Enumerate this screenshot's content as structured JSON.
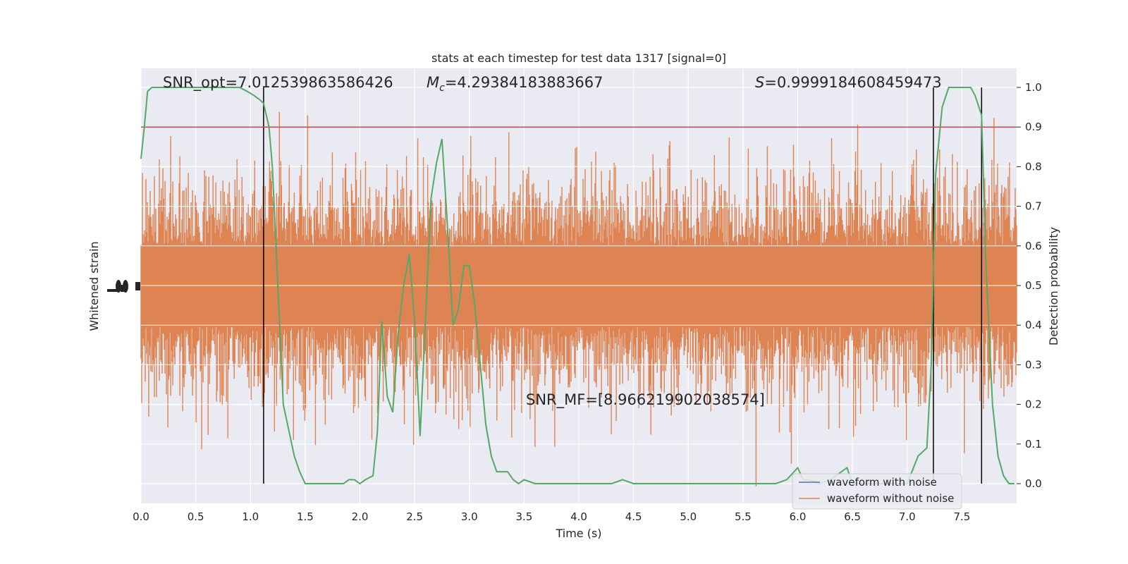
{
  "chart_data": {
    "type": "line",
    "title": "stats at each timestep for test data 1317 [signal=0]",
    "xlabel": "Time (s)",
    "ylabel_left": "Whitened strain",
    "ylabel_right": "Detection probability",
    "xlim": [
      0.0,
      8.0
    ],
    "ylim_right": [
      -0.05,
      1.05
    ],
    "grid": true,
    "legend_position": "lower-right",
    "x_ticks": [
      "0.0",
      "0.5",
      "1.0",
      "1.5",
      "2.0",
      "2.5",
      "3.0",
      "3.5",
      "4.0",
      "4.5",
      "5.0",
      "5.5",
      "6.0",
      "6.5",
      "7.0",
      "7.5"
    ],
    "y_ticks_right": [
      "0.0",
      "0.1",
      "0.2",
      "0.3",
      "0.4",
      "0.5",
      "0.6",
      "0.7",
      "0.8",
      "0.9",
      "1.0"
    ],
    "annotations": {
      "snr_opt": "SNR_opt=7.012539863586426",
      "mc_symbol": "M",
      "mc_sub": "c",
      "mc_value": "=4.29384183883667",
      "s_symbol": "S",
      "s_value": "=0.9999184608459473",
      "snr_mf": "SNR_MF=[8.966219902038574]"
    },
    "threshold": 0.9,
    "vertical_lines": [
      1.12,
      7.24,
      7.68
    ],
    "series": [
      {
        "name": "waveform with noise",
        "color": "#4c72b0"
      },
      {
        "name": "waveform without noise",
        "color": "#dd8452"
      },
      {
        "color": "#55a868",
        "x": [
          0.0,
          0.03,
          0.06,
          0.1,
          0.15,
          0.2,
          0.3,
          0.4,
          0.5,
          0.6,
          0.7,
          0.8,
          0.9,
          0.97,
          1.03,
          1.08,
          1.12,
          1.17,
          1.2,
          1.25,
          1.3,
          1.4,
          1.45,
          1.5,
          1.6,
          1.7,
          1.75,
          1.8,
          1.85,
          1.9,
          1.95,
          2.0,
          2.05,
          2.12,
          2.16,
          2.2,
          2.25,
          2.3,
          2.35,
          2.4,
          2.45,
          2.5,
          2.55,
          2.6,
          2.65,
          2.7,
          2.75,
          2.8,
          2.85,
          2.9,
          2.95,
          3.0,
          3.05,
          3.1,
          3.15,
          3.2,
          3.25,
          3.3,
          3.35,
          3.4,
          3.45,
          3.5,
          3.6,
          3.7,
          3.8,
          4.0,
          4.2,
          4.3,
          4.4,
          4.5,
          4.6,
          4.8,
          5.0,
          5.2,
          5.4,
          5.6,
          5.8,
          5.9,
          6.0,
          6.05,
          6.1,
          6.2,
          6.3,
          6.35,
          6.4,
          6.45,
          6.5,
          6.6,
          6.8,
          6.9,
          7.0,
          7.1,
          7.18,
          7.22,
          7.26,
          7.32,
          7.38,
          7.45,
          7.52,
          7.58,
          7.62,
          7.68,
          7.72,
          7.78,
          7.83,
          7.88,
          7.93,
          7.98
        ],
        "y": [
          0.82,
          0.9,
          0.99,
          1.0,
          1.0,
          1.0,
          1.0,
          1.0,
          1.0,
          1.0,
          1.0,
          1.0,
          1.0,
          0.99,
          0.98,
          0.97,
          0.96,
          0.9,
          0.8,
          0.5,
          0.2,
          0.07,
          0.03,
          0.0,
          0.0,
          0.0,
          0.0,
          0.0,
          0.0,
          0.01,
          0.01,
          0.0,
          0.01,
          0.02,
          0.13,
          0.41,
          0.22,
          0.18,
          0.38,
          0.5,
          0.58,
          0.41,
          0.12,
          0.42,
          0.72,
          0.81,
          0.87,
          0.65,
          0.4,
          0.44,
          0.55,
          0.55,
          0.45,
          0.3,
          0.15,
          0.07,
          0.03,
          0.03,
          0.03,
          0.01,
          0.0,
          0.01,
          0.0,
          0.0,
          0.0,
          0.0,
          0.0,
          0.0,
          0.01,
          0.0,
          0.0,
          0.0,
          0.0,
          0.0,
          0.0,
          0.0,
          0.0,
          0.01,
          0.04,
          0.01,
          0.01,
          0.0,
          0.01,
          0.02,
          0.03,
          0.04,
          0.0,
          0.0,
          0.0,
          0.0,
          0.0,
          0.07,
          0.09,
          0.3,
          0.78,
          0.95,
          1.0,
          1.0,
          1.0,
          1.0,
          0.98,
          0.93,
          0.55,
          0.2,
          0.07,
          0.02,
          0.0,
          0.0
        ]
      }
    ]
  }
}
